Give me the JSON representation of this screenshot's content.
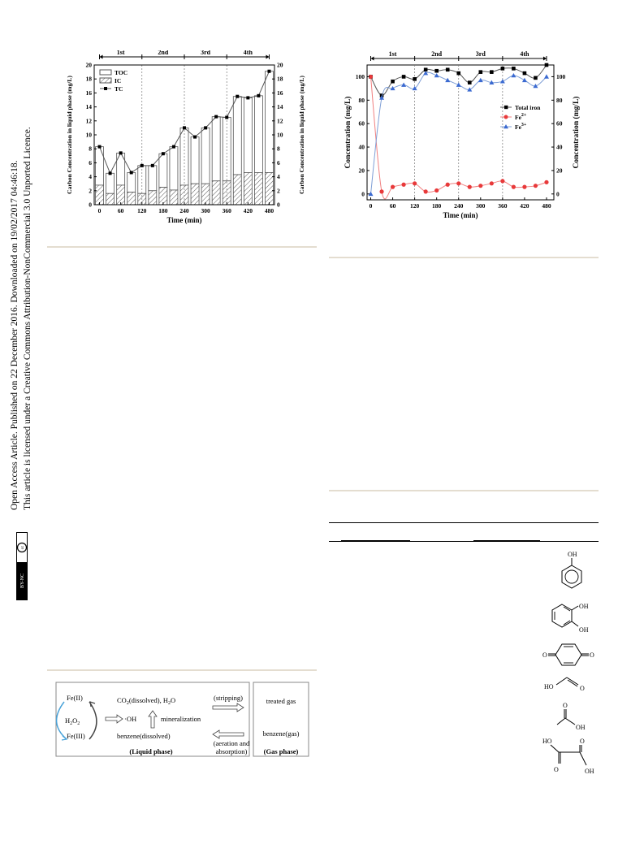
{
  "sidebar": {
    "line1": "Open Access Article. Published on 22 December 2016. Downloaded on 19/02/2017 04:46:18.",
    "line2": "This article is licensed under a Creative Commons Attribution-NonCommercial 3.0 Unported Licence.",
    "badge": "BY-NC"
  },
  "chart_data": [
    {
      "type": "bar",
      "x_label": "Time (min)",
      "y_label_left": "Carbon Concentration in liquid phase (mg/L)",
      "y_label_right": "Carbon Concentration in liquid phase (mg/L)",
      "x_ticks": [
        "0",
        "60",
        "120",
        "180",
        "240",
        "300",
        "360",
        "420",
        "480"
      ],
      "y_ticks": [
        "0",
        "2",
        "4",
        "6",
        "8",
        "10",
        "12",
        "14",
        "16",
        "18",
        "20"
      ],
      "ylim": [
        0,
        20
      ],
      "xlim": [
        -15,
        495
      ],
      "phases": [
        "1st",
        "2nd",
        "3rd",
        "4th"
      ],
      "legend": [
        "TOC",
        "IC",
        "TC"
      ],
      "x": [
        0,
        30,
        60,
        90,
        120,
        150,
        180,
        210,
        240,
        270,
        300,
        330,
        360,
        390,
        420,
        450,
        480
      ],
      "tc": [
        8.3,
        4.5,
        7.4,
        4.6,
        5.6,
        5.6,
        7.3,
        8.3,
        11.0,
        9.7,
        11.0,
        12.6,
        12.5,
        15.5,
        15.3,
        15.6,
        19.1
      ],
      "ic": [
        2.8,
        1.6,
        2.8,
        1.8,
        1.6,
        2.0,
        2.5,
        2.1,
        2.8,
        3.0,
        3.0,
        3.4,
        3.4,
        4.3,
        4.6,
        4.6,
        4.6
      ]
    },
    {
      "type": "line",
      "x_label": "Time (min)",
      "y_label_left": "Concentration (mg/L)",
      "y_label_right": "Concentration (mg/L)",
      "x_ticks": [
        "0",
        "60",
        "120",
        "180",
        "240",
        "300",
        "360",
        "420",
        "480"
      ],
      "y_ticks": [
        "0",
        "20",
        "40",
        "60",
        "80",
        "100"
      ],
      "ylim": [
        -5,
        110
      ],
      "xlim": [
        -10,
        500
      ],
      "phases": [
        "1st",
        "2nd",
        "3rd",
        "4th"
      ],
      "legend": [
        "Total iron",
        "Fe",
        "Fe"
      ],
      "legend_sup": [
        "",
        "2+",
        "3+"
      ],
      "x": [
        0,
        30,
        60,
        90,
        120,
        150,
        180,
        210,
        240,
        270,
        300,
        330,
        360,
        390,
        420,
        450,
        480
      ],
      "total_iron": [
        100,
        84,
        96,
        100,
        98,
        106,
        105,
        106,
        103,
        95,
        104,
        104,
        107,
        107,
        103,
        99,
        110
      ],
      "fe2": [
        100,
        2,
        6,
        8,
        9,
        2,
        3,
        8,
        9,
        6,
        7,
        9,
        11,
        6,
        6,
        7,
        10
      ],
      "fe3": [
        0,
        82,
        90,
        93,
        90,
        103,
        101,
        97,
        93,
        89,
        97,
        95,
        96,
        101,
        97,
        92,
        100
      ]
    }
  ],
  "scheme": {
    "fe2": "Fe(II)",
    "h2o2": "H",
    "h2o2_sub1": "2",
    "h2o2_mid": "O",
    "h2o2_sub2": "2",
    "fe3": "Fe(III)",
    "co2": "CO",
    "co2_sub": "2",
    "co2_rest": "(dissolved), H",
    "h2o_sub": "2",
    "h2o_end": "O",
    "oh": "·OH",
    "mineralization": "mineralization",
    "benzene_dissolved": "benzene(dissolved)",
    "liquid_phase": "(Liquid phase)",
    "stripping": "(stripping)",
    "aeration": "(aeration and",
    "absorption": "absorption)",
    "treated_gas": "treated gas",
    "benzene_gas": "benzene(gas)",
    "gas_phase": "(Gas phase)"
  },
  "structures": {
    "phenol_oh": "OH",
    "catechol_oh1": "OH",
    "catechol_oh2": "OH",
    "quinone_o1": "O",
    "quinone_o2": "O",
    "formic_ho": "HO",
    "formic_o": "O",
    "acetic_o": "O",
    "acetic_oh": "OH",
    "oxalic_ho": "HO",
    "oxalic_o1": "O",
    "oxalic_o2": "O",
    "oxalic_oh": "OH"
  }
}
